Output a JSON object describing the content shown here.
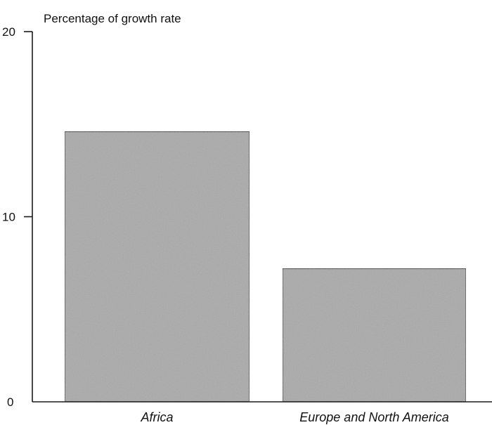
{
  "chart_data": {
    "type": "bar",
    "title": "",
    "ylabel": "Percentage of growth rate",
    "xlabel": "",
    "categories": [
      "Africa",
      "Europe and North America"
    ],
    "values": [
      14.6,
      7.2
    ],
    "ylim": [
      0,
      20
    ],
    "yticks": [
      0,
      10,
      20
    ],
    "ytick_labels": [
      "0",
      "10",
      "20"
    ],
    "grid": false,
    "legend": "none",
    "bar_color": "#aaaaaa",
    "bar_edge_color": "#333333",
    "axis_color": "#1a1a1a"
  }
}
